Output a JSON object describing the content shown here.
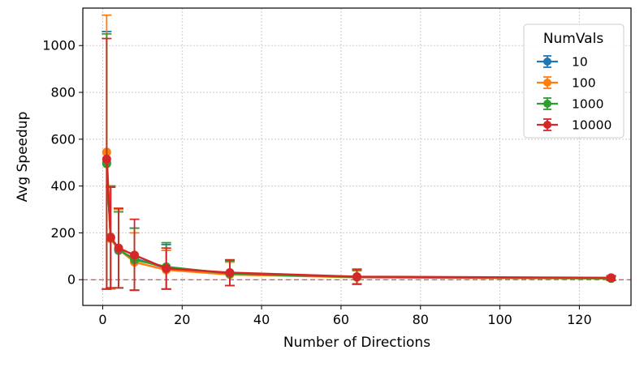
{
  "chart_data": {
    "type": "line",
    "xlabel": "Number of Directions",
    "ylabel": "Avg Speedup",
    "xlim": [
      -5,
      133
    ],
    "ylim": [
      -110,
      1160
    ],
    "xticks": [
      0,
      20,
      40,
      60,
      80,
      100,
      120
    ],
    "yticks": [
      0,
      200,
      400,
      600,
      800,
      1000
    ],
    "grid": true,
    "reference_line": {
      "y": 0,
      "color": "#d62728",
      "style": "dashed"
    },
    "legend": {
      "title": "NumVals",
      "placement": "top-right"
    },
    "x": [
      1,
      2,
      4,
      8,
      16,
      32,
      64,
      128
    ],
    "series": [
      {
        "name": "10",
        "color": "#1f77b4",
        "values": [
          500,
          180,
          125,
          90,
          50,
          25,
          12,
          6
        ],
        "err_low": [
          -40,
          -35,
          -35,
          -45,
          -40,
          -25,
          -20,
          -3
        ],
        "err_high": [
          1060,
          400,
          290,
          220,
          150,
          80,
          40,
          15
        ]
      },
      {
        "name": "100",
        "color": "#ff7f0e",
        "values": [
          545,
          175,
          130,
          75,
          42,
          22,
          10,
          5
        ],
        "err_low": [
          -40,
          -40,
          -35,
          -45,
          -40,
          -25,
          -18,
          -3
        ],
        "err_high": [
          1130,
          400,
          300,
          200,
          125,
          75,
          38,
          14
        ]
      },
      {
        "name": "1000",
        "color": "#2ca02c",
        "values": [
          495,
          182,
          130,
          85,
          55,
          26,
          11,
          6
        ],
        "err_low": [
          -40,
          -35,
          -35,
          -45,
          -40,
          -25,
          -18,
          -3
        ],
        "err_high": [
          1050,
          400,
          290,
          220,
          158,
          80,
          40,
          15
        ]
      },
      {
        "name": "10000",
        "color": "#d62728",
        "values": [
          515,
          180,
          135,
          105,
          48,
          30,
          13,
          8
        ],
        "err_low": [
          -40,
          -35,
          -35,
          -45,
          -40,
          -25,
          -18,
          -3
        ],
        "err_high": [
          1030,
          395,
          305,
          258,
          135,
          85,
          45,
          17
        ]
      }
    ]
  }
}
